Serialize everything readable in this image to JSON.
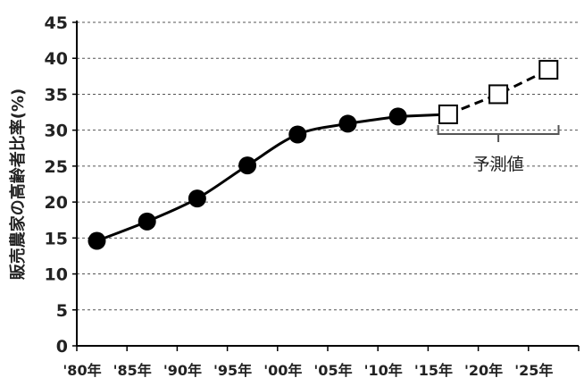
{
  "chart_data": {
    "type": "line",
    "ylabel": "販売農家の高齢者比率(%)",
    "xlabel": "",
    "ylim": [
      0,
      45
    ],
    "yticks": [
      0,
      5,
      10,
      15,
      20,
      25,
      30,
      35,
      40,
      45
    ],
    "x_tick_labels": [
      "'80年",
      "'85年",
      "'90年",
      "'95年",
      "'00年",
      "'05年",
      "'10年",
      "'15年",
      "'20年",
      "'25年"
    ],
    "grid": true,
    "series": [
      {
        "style": "solid, filled circle markers",
        "color": "#000000",
        "x": [
          1982,
          1987,
          1992,
          1997,
          2002,
          2007,
          2012
        ],
        "y": [
          14.6,
          17.3,
          20.5,
          25.1,
          29.4,
          30.9,
          31.9
        ]
      },
      {
        "style": "dashed, open square markers",
        "color": "#000000",
        "x": [
          2017,
          2022,
          2027
        ],
        "y": [
          32.2,
          35.0,
          38.4
        ]
      }
    ],
    "annotations": [
      {
        "text": "予測値",
        "bracket_from_x": 2016,
        "bracket_to_x": 2028
      }
    ]
  }
}
